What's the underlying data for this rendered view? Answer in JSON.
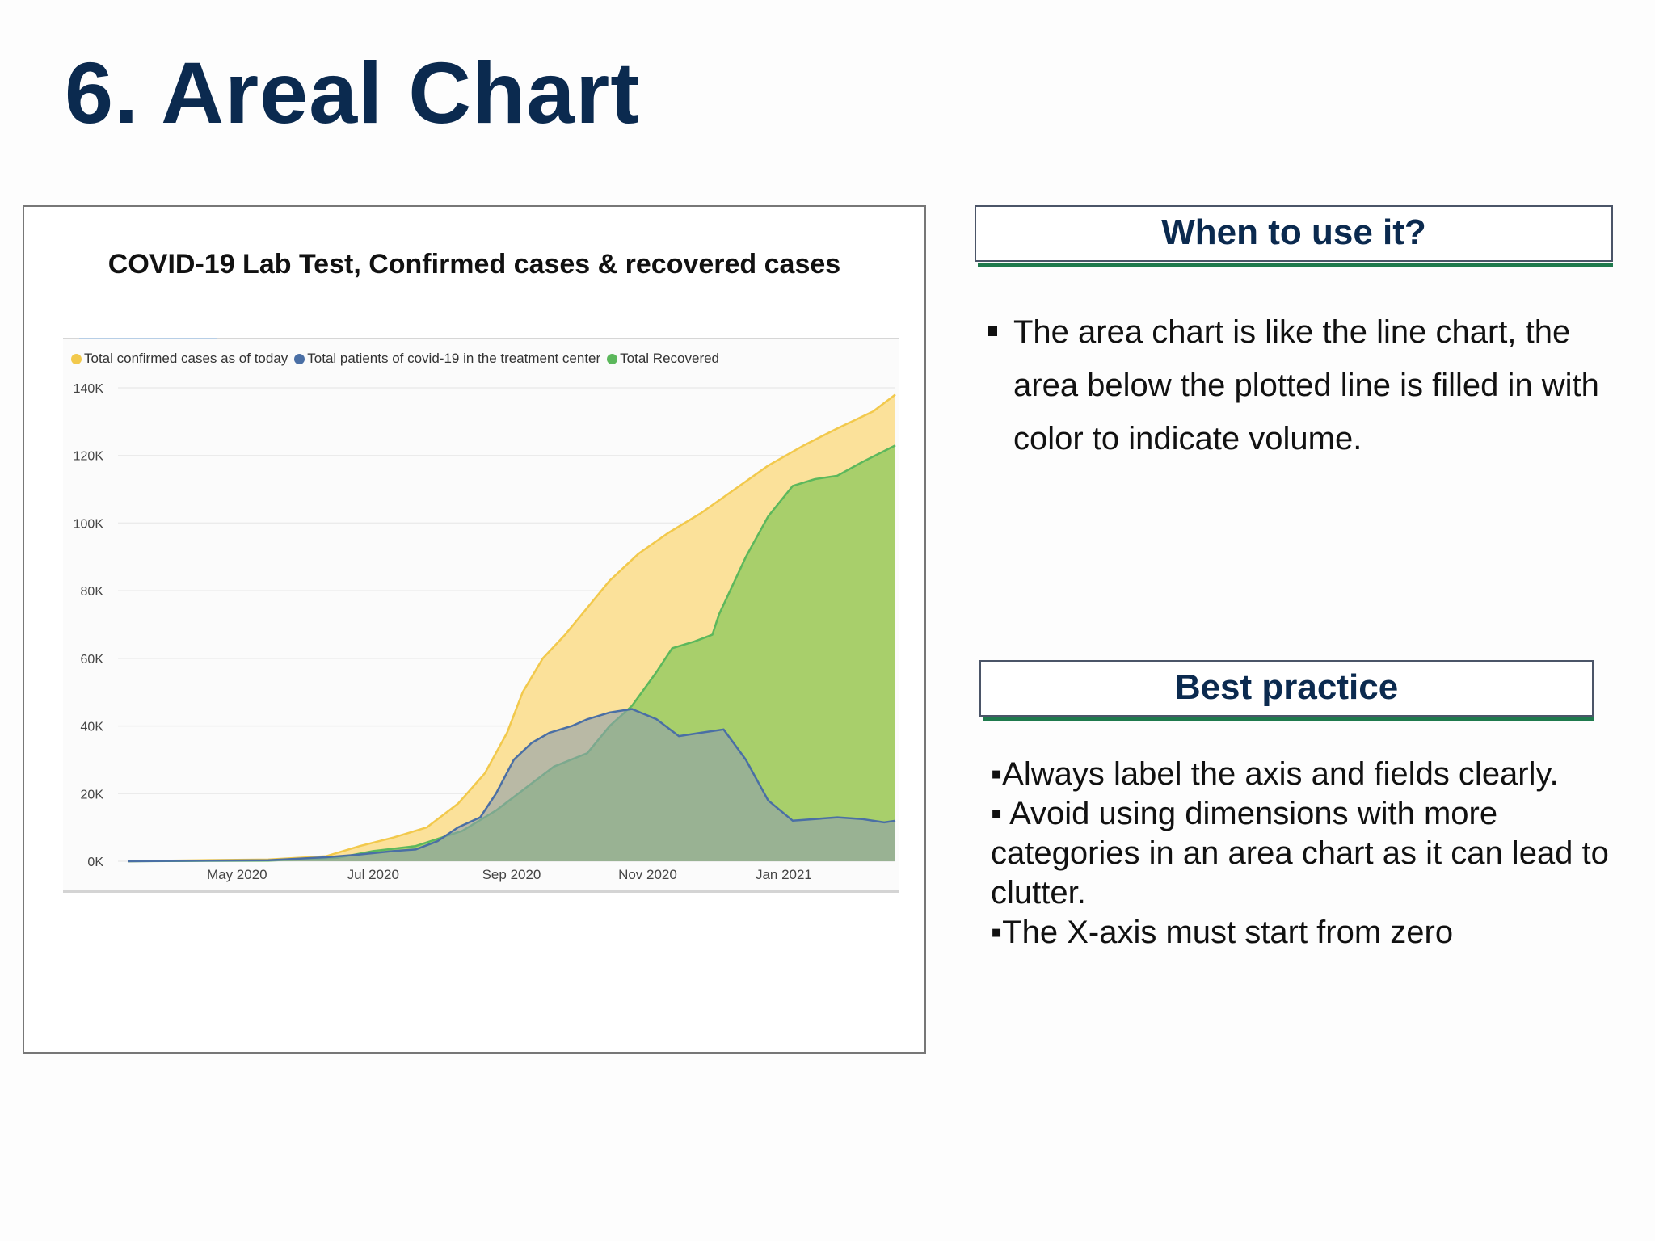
{
  "slide": {
    "title": "6. Areal Chart"
  },
  "when_box": {
    "heading": "When to use it?",
    "bullets": [
      "The area chart is like the line chart,  the area below the plotted line is filled in with color to indicate volume."
    ]
  },
  "best_box": {
    "heading": "Best practice",
    "lines": [
      "▪Always label the axis and fields clearly.",
      "▪ Avoid using dimensions with more categories in an area chart as it can lead to clutter.",
      "▪The X-axis must start from zero"
    ]
  },
  "colors": {
    "title": "#0b2a4f",
    "accent_underline": "#1f7a4d"
  },
  "chart_data": {
    "type": "area",
    "title": "COVID-19 Lab Test, Confirmed cases & recovered cases",
    "xlabel": "",
    "ylabel": "",
    "ylim": [
      0,
      140000
    ],
    "y_ticks": [
      0,
      20000,
      40000,
      60000,
      80000,
      100000,
      120000,
      140000
    ],
    "y_tick_labels": [
      "0K",
      "20K",
      "40K",
      "60K",
      "80K",
      "100K",
      "120K",
      "140K"
    ],
    "x_range": [
      "2020-03-13",
      "2021-02-20"
    ],
    "x_tick_dates": [
      "2020-05-01",
      "2020-07-01",
      "2020-09-01",
      "2020-11-01",
      "2021-01-01"
    ],
    "x_tick_labels": [
      "May 2020",
      "Jul 2020",
      "Sep 2020",
      "Nov 2020",
      "Jan 2021"
    ],
    "legend_position": "top-left",
    "grid": true,
    "series": [
      {
        "name": "Total confirmed cases as of today",
        "color": "#f2c94c",
        "fill": "#fbe19a",
        "points": [
          [
            "2020-03-13",
            0
          ],
          [
            "2020-04-15",
            300
          ],
          [
            "2020-05-15",
            500
          ],
          [
            "2020-06-10",
            1500
          ],
          [
            "2020-06-25",
            4500
          ],
          [
            "2020-07-10",
            7000
          ],
          [
            "2020-07-25",
            10000
          ],
          [
            "2020-08-08",
            17000
          ],
          [
            "2020-08-20",
            26000
          ],
          [
            "2020-08-30",
            38000
          ],
          [
            "2020-09-06",
            50000
          ],
          [
            "2020-09-15",
            60000
          ],
          [
            "2020-09-25",
            67000
          ],
          [
            "2020-10-05",
            75000
          ],
          [
            "2020-10-15",
            83000
          ],
          [
            "2020-10-28",
            91000
          ],
          [
            "2020-11-10",
            97000
          ],
          [
            "2020-11-25",
            103000
          ],
          [
            "2020-12-10",
            110000
          ],
          [
            "2020-12-25",
            117000
          ],
          [
            "2021-01-10",
            123000
          ],
          [
            "2021-01-25",
            128000
          ],
          [
            "2021-02-10",
            133000
          ],
          [
            "2021-02-20",
            138000
          ]
        ]
      },
      {
        "name": "Total Recovered",
        "color": "#5cb85c",
        "fill": "#a8cf6b",
        "points": [
          [
            "2020-03-13",
            0
          ],
          [
            "2020-05-15",
            200
          ],
          [
            "2020-06-15",
            1000
          ],
          [
            "2020-07-01",
            3000
          ],
          [
            "2020-07-20",
            4500
          ],
          [
            "2020-08-10",
            9000
          ],
          [
            "2020-08-25",
            15000
          ],
          [
            "2020-09-08",
            22000
          ],
          [
            "2020-09-20",
            28000
          ],
          [
            "2020-10-05",
            32000
          ],
          [
            "2020-10-15",
            40000
          ],
          [
            "2020-10-25",
            46000
          ],
          [
            "2020-11-05",
            56000
          ],
          [
            "2020-11-12",
            63000
          ],
          [
            "2020-11-22",
            65000
          ],
          [
            "2020-11-30",
            67000
          ],
          [
            "2020-12-03",
            73000
          ],
          [
            "2020-12-15",
            90000
          ],
          [
            "2020-12-25",
            102000
          ],
          [
            "2021-01-05",
            111000
          ],
          [
            "2021-01-15",
            113000
          ],
          [
            "2021-01-25",
            114000
          ],
          [
            "2021-02-05",
            118000
          ],
          [
            "2021-02-20",
            123000
          ]
        ]
      },
      {
        "name": "Total patients of covid-19 in the treatment center",
        "color": "#4a6fa5",
        "fill": "#8fa0ad",
        "points": [
          [
            "2020-03-13",
            0
          ],
          [
            "2020-05-15",
            300
          ],
          [
            "2020-06-10",
            1200
          ],
          [
            "2020-06-25",
            2000
          ],
          [
            "2020-07-10",
            3000
          ],
          [
            "2020-07-20",
            3500
          ],
          [
            "2020-07-30",
            6000
          ],
          [
            "2020-08-08",
            10000
          ],
          [
            "2020-08-18",
            13000
          ],
          [
            "2020-08-25",
            20000
          ],
          [
            "2020-09-02",
            30000
          ],
          [
            "2020-09-10",
            35000
          ],
          [
            "2020-09-18",
            38000
          ],
          [
            "2020-09-28",
            40000
          ],
          [
            "2020-10-05",
            42000
          ],
          [
            "2020-10-15",
            44000
          ],
          [
            "2020-10-25",
            45000
          ],
          [
            "2020-11-05",
            42000
          ],
          [
            "2020-11-15",
            37000
          ],
          [
            "2020-11-25",
            38000
          ],
          [
            "2020-12-05",
            39000
          ],
          [
            "2020-12-15",
            30000
          ],
          [
            "2020-12-25",
            18000
          ],
          [
            "2021-01-05",
            12000
          ],
          [
            "2021-01-15",
            12500
          ],
          [
            "2021-01-25",
            13000
          ],
          [
            "2021-02-05",
            12500
          ],
          [
            "2021-02-15",
            11500
          ],
          [
            "2021-02-20",
            12000
          ]
        ]
      }
    ]
  }
}
